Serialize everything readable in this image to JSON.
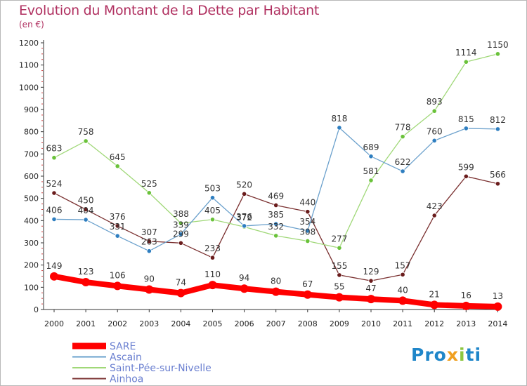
{
  "title": "Evolution du Montant de la Dette par Habitant",
  "subtitle": "(en €)",
  "logo_text": "Proxiti",
  "chart_data": {
    "type": "line",
    "title": "Evolution du Montant de la Dette par Habitant",
    "ylabel": "(en €)",
    "xlabel": "",
    "ylim": [
      0,
      1200
    ],
    "yticks": [
      "0",
      "100",
      "200",
      "300",
      "400",
      "500",
      "600",
      "700",
      "800",
      "900",
      "1000",
      "1100",
      "1200"
    ],
    "categories": [
      "2000",
      "2001",
      "2002",
      "2003",
      "2004",
      "2005",
      "2006",
      "2007",
      "2008",
      "2009",
      "2010",
      "2011",
      "2012",
      "2013",
      "2014"
    ],
    "grid": false,
    "legend_position": "bottom-left",
    "series": [
      {
        "name": "SARE",
        "color": "#ff0000",
        "marker_color": "#ff0000",
        "values": [
          149,
          123,
          106,
          90,
          74,
          110,
          94,
          80,
          67,
          55,
          47,
          40,
          21,
          16,
          13
        ],
        "labels": [
          "149",
          "123",
          "106",
          "90",
          "74",
          "110",
          "94",
          "80",
          "67",
          "55",
          "47",
          "40",
          "21",
          "16",
          "13"
        ]
      },
      {
        "name": "Ascain",
        "color": "#6aa0cc",
        "marker_color": "#2e7ec0",
        "values": [
          406,
          404,
          331,
          263,
          339,
          503,
          376,
          385,
          354,
          818,
          689,
          622,
          760,
          815,
          812
        ],
        "labels": [
          "406",
          "404",
          "331",
          "263",
          "339",
          "503",
          "376",
          "385",
          "354",
          "818",
          "689",
          "622",
          "760",
          "815",
          "812"
        ]
      },
      {
        "name": "Saint-Pée-sur-Nivelle",
        "color": "#a0d878",
        "marker_color": "#6ac23a",
        "values": [
          683,
          758,
          645,
          525,
          388,
          405,
          372,
          332,
          308,
          277,
          581,
          778,
          893,
          1114,
          1150
        ],
        "labels": [
          "683",
          "758",
          "645",
          "525",
          "388",
          "405",
          "372",
          "332",
          "308",
          "277",
          "581",
          "778",
          "893",
          "1114",
          "1150"
        ]
      },
      {
        "name": "Ainhoa",
        "color": "#7a3030",
        "marker_color": "#6a1c1c",
        "values": [
          524,
          450,
          376,
          307,
          299,
          233,
          520,
          469,
          440,
          155,
          129,
          157,
          423,
          599,
          566
        ],
        "labels": [
          "524",
          "450",
          "376",
          "307",
          "299",
          "233",
          "520",
          "469",
          "440",
          "155",
          "129",
          "157",
          "423",
          "599",
          "566"
        ]
      }
    ]
  }
}
